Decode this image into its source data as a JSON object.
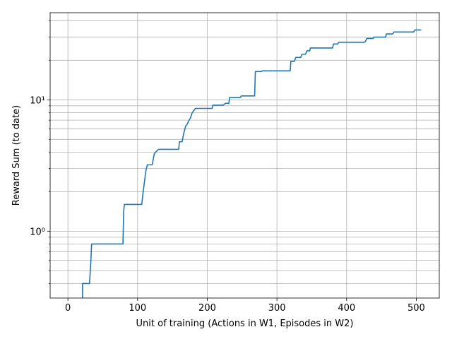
{
  "chart_data": {
    "type": "line",
    "title": "",
    "xlabel": "Unit of training (Actions in W1, Episodes in W2)",
    "ylabel": "Reward Sum (to date)",
    "xlim": [
      -25.5,
      533
    ],
    "ylim": [
      0.31,
      46
    ],
    "yscale": "log",
    "grid": true,
    "grid_minor_y": true,
    "x_ticks": [
      0,
      100,
      200,
      300,
      400,
      500
    ],
    "x_tick_labels": [
      "0",
      "100",
      "200",
      "300",
      "400",
      "500"
    ],
    "y_major_ticks": [
      1,
      10
    ],
    "y_major_labels": [
      "10⁰",
      "10¹"
    ],
    "y_minor_ticks": [
      0.4,
      0.5,
      0.6,
      0.7,
      0.8,
      0.9,
      2,
      3,
      4,
      5,
      6,
      7,
      8,
      9,
      20,
      30,
      40
    ],
    "series": [
      {
        "color": "#1f77b4",
        "x": [
          21,
          21,
          31,
          33,
          34,
          79,
          80,
          81,
          106,
          108,
          110,
          112,
          114,
          121,
          124,
          126,
          130,
          159,
          160,
          164,
          166,
          169,
          171,
          174,
          176,
          178,
          180,
          183,
          207,
          208,
          223,
          226,
          231,
          232,
          247,
          249,
          268,
          269,
          278,
          279,
          319,
          320,
          325,
          327,
          334,
          336,
          341,
          343,
          347,
          348,
          380,
          381,
          387,
          389,
          426,
          428,
          429,
          438,
          439,
          456,
          457,
          466,
          468,
          496,
          498,
          507
        ],
        "y": [
          0.31,
          0.4,
          0.4,
          0.6,
          0.8,
          0.8,
          1.4,
          1.6,
          1.6,
          2.0,
          2.4,
          2.9,
          3.2,
          3.2,
          3.9,
          4.0,
          4.2,
          4.2,
          4.8,
          4.8,
          5.5,
          6.3,
          6.5,
          7.0,
          7.3,
          7.9,
          8.2,
          8.6,
          8.6,
          9.1,
          9.1,
          9.4,
          9.4,
          10.4,
          10.4,
          10.7,
          10.7,
          16.4,
          16.4,
          16.6,
          16.6,
          19.6,
          19.6,
          21.0,
          21.0,
          22.2,
          22.2,
          23.6,
          23.6,
          24.8,
          24.8,
          26.6,
          26.6,
          27.4,
          27.4,
          28.5,
          29.3,
          29.3,
          30.0,
          30.0,
          31.7,
          31.7,
          32.8,
          32.8,
          34.0,
          34.0
        ]
      }
    ]
  }
}
